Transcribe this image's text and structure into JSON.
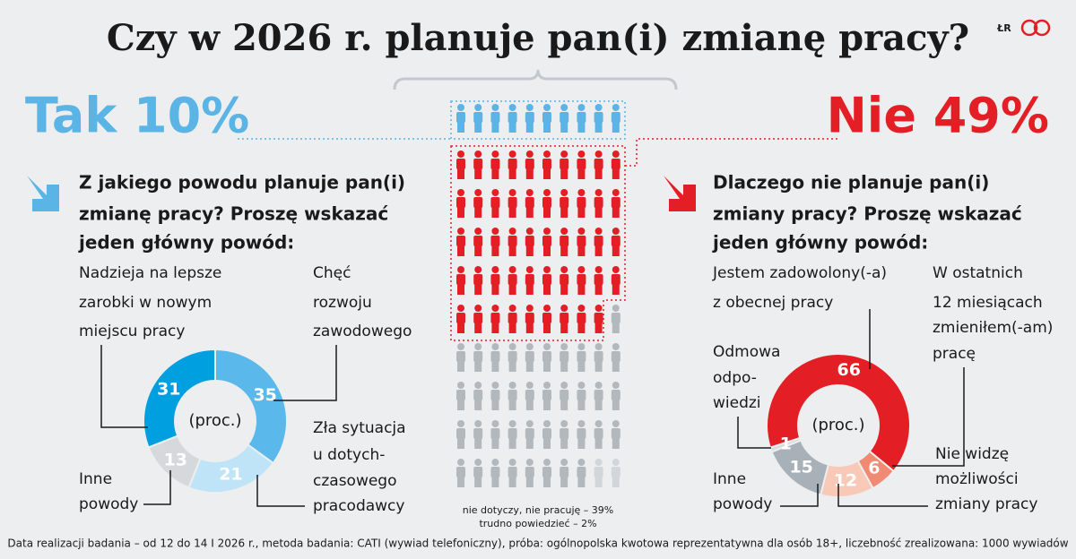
{
  "title": "Czy w 2026 r. planuje pan(i) zmianę pracy?",
  "logo": "ŁR",
  "yes_label": "Tak 10%",
  "no_label": "Nie 49%",
  "pictogram": {
    "groups": [
      {
        "count": 10,
        "color": "#5ab4e5"
      },
      {
        "count": 49,
        "color": "#e31e24"
      },
      {
        "count": 39,
        "color": "#b3b8bd"
      },
      {
        "count": 2,
        "color": "#d3d6d9"
      }
    ],
    "notes": [
      "nie dotyczy, nie pracuję – 39%",
      "trudno powiedzieć – 2%"
    ]
  },
  "chart_data": [
    {
      "type": "donut",
      "question": [
        "Z jakiego powodu planuje pan(i)",
        "zmianę pracy? Proszę wskazać",
        "jeden główny powód:"
      ],
      "center_label": "(proc.)",
      "categories": [
        [
          "Chęć",
          "rozwoju",
          "zawodowego"
        ],
        [
          "Zła sytuacja",
          "u dotych-",
          "czasowego",
          "pracodawcy"
        ],
        [
          "Inne",
          "powody"
        ],
        [
          "Nadzieja na lepsze",
          "zarobki w nowym",
          "miejscu pracy"
        ]
      ],
      "values": [
        35,
        21,
        13,
        31
      ],
      "colors": [
        "#5bb8ea",
        "#bfe3f7",
        "#d6d9dc",
        "#00a0e0"
      ]
    },
    {
      "type": "donut",
      "question": [
        "Dlaczego nie planuje pan(i)",
        "zmiany pracy? Proszę wskazać",
        "jeden główny powód:"
      ],
      "center_label": "(proc.)",
      "categories": [
        [
          "Jestem zadowolony(-a)",
          "z obecnej pracy"
        ],
        [
          "W ostatnich",
          "12 miesiącach",
          "zmieniłem(-am)",
          "pracę"
        ],
        [
          "Nie widzę",
          "możliwości",
          "zmiany pracy"
        ],
        [
          "Inne",
          "powody"
        ],
        [
          "Odmowa",
          "odpo-",
          "wiedzi"
        ]
      ],
      "values": [
        66,
        6,
        12,
        15,
        1
      ],
      "colors": [
        "#e31e24",
        "#f08a73",
        "#f9c9b8",
        "#a9b1b8",
        "#d8dadc"
      ]
    }
  ],
  "footnote": "Data realizacji badania – od 12 do 14 I 2026 r., metoda badania: CATI (wywiad telefoniczny), próba: ogólnopolska kwotowa reprezentatywna dla osób 18+, liczebność zrealizowana: 1000 wywiadów"
}
